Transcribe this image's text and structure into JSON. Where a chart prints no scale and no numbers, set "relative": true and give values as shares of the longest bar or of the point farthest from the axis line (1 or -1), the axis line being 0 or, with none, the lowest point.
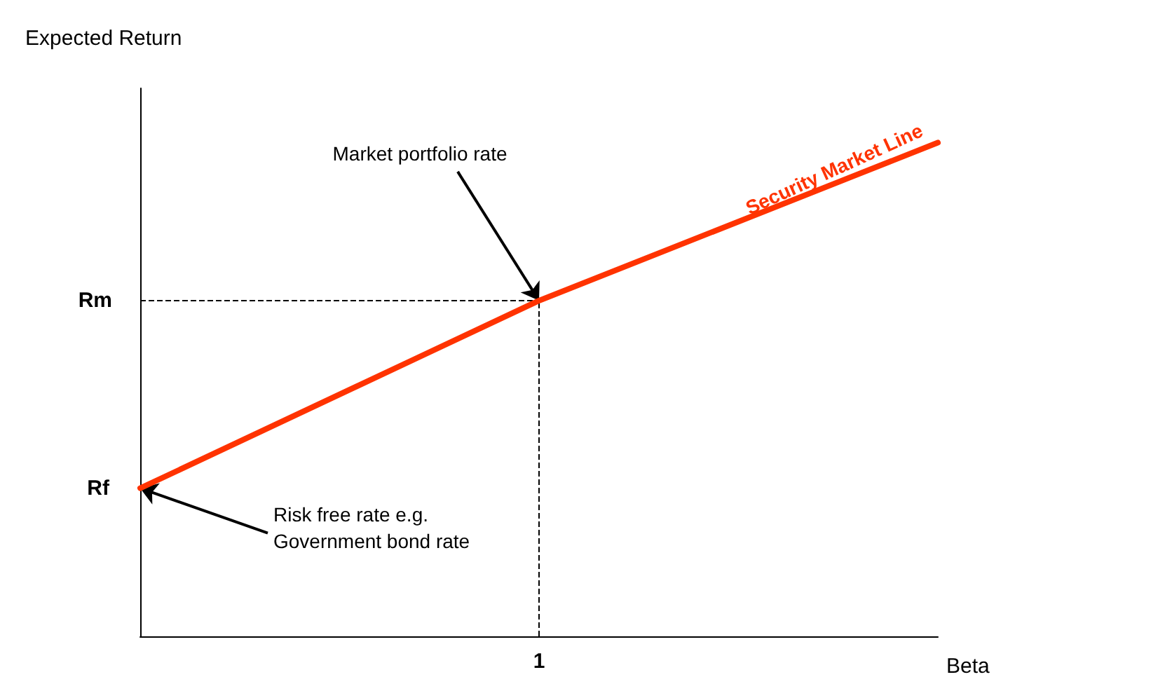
{
  "chart_data": {
    "type": "line",
    "relative": true,
    "xlabel": "Beta",
    "ylabel": "Expected Return",
    "categories": [
      null,
      null,
      null
    ],
    "legend": false,
    "marker": "none",
    "line_style": "solid",
    "series": [
      {
        "name": "Security Market Line",
        "color": "#ff3300",
        "values": [
          0.3,
          0.68,
          1
        ]
      }
    ],
    "ref_lines": [
      {
        "axis": "y",
        "value": 0.68,
        "label": "Rm",
        "line_style": "dashed",
        "color": "#000000"
      }
    ],
    "annotations": [
      "Rf",
      "Market portfolio rate",
      "Risk free rate e.g.\nGovernment bond rate",
      "1"
    ]
  }
}
